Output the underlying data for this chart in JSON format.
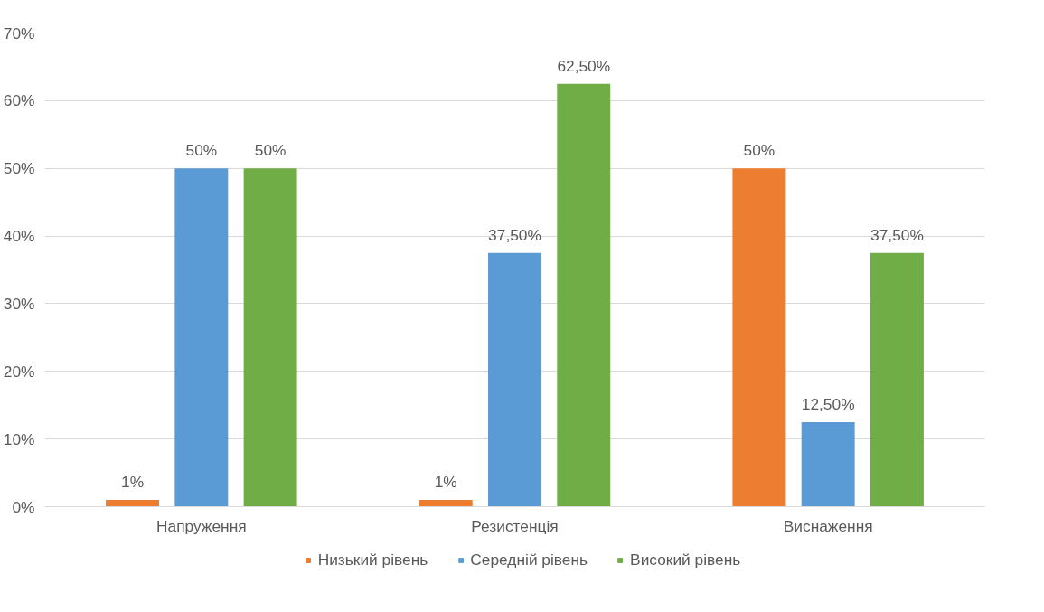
{
  "chart_data": {
    "type": "bar",
    "categories": [
      "Напруження",
      "Резистенція",
      "Виснаження"
    ],
    "series": [
      {
        "name": "Низький рівень",
        "color": "#ed7d31",
        "values": [
          1,
          1,
          50
        ],
        "value_labels": [
          "1%",
          "1%",
          "50%"
        ]
      },
      {
        "name": "Середній рівень",
        "color": "#5b9bd5",
        "values": [
          50,
          37.5,
          12.5
        ],
        "value_labels": [
          "50%",
          "37,50%",
          "12,50%"
        ]
      },
      {
        "name": "Високий рівень",
        "color": "#70ad47",
        "values": [
          50,
          62.5,
          37.5
        ],
        "value_labels": [
          "50%",
          "62,50%",
          "37,50%"
        ]
      }
    ],
    "ylim": [
      0,
      70
    ],
    "yticks": [
      {
        "value": 0,
        "label": "0%"
      },
      {
        "value": 10,
        "label": "10%"
      },
      {
        "value": 20,
        "label": "20%"
      },
      {
        "value": 30,
        "label": "30%"
      },
      {
        "value": 40,
        "label": "40%"
      },
      {
        "value": 50,
        "label": "50%"
      },
      {
        "value": 60,
        "label": "60%"
      },
      {
        "value": 70,
        "label": "70%"
      }
    ],
    "grid": "y",
    "legend": "bottom"
  }
}
